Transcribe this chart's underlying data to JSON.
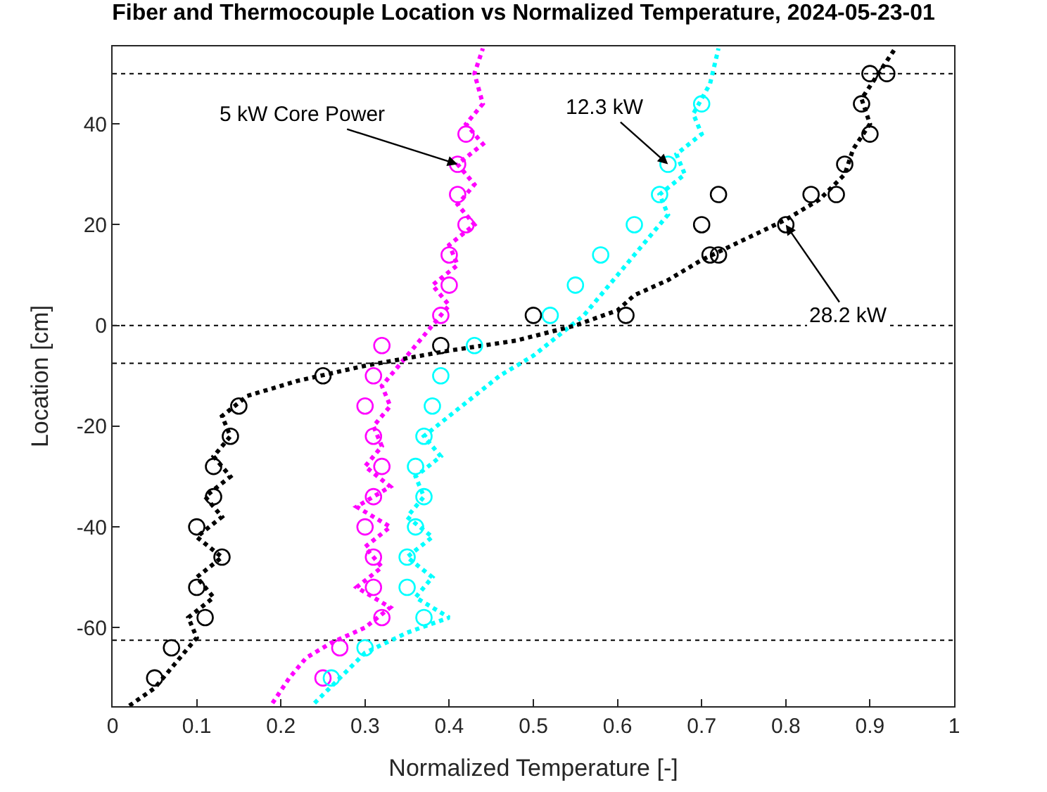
{
  "chart_data": {
    "type": "scatter",
    "title": "Fiber and Thermocouple Location vs Normalized Temperature, 2024-05-23-01",
    "xlabel": "Normalized Temperature [-]",
    "ylabel": "Location [cm]",
    "xlim": [
      0,
      1
    ],
    "xticks": [
      0,
      0.1,
      0.2,
      0.3,
      0.4,
      0.5,
      0.6,
      0.7,
      0.8,
      0.9,
      1
    ],
    "ylim": [
      -75.6,
      55.4
    ],
    "yticks": [
      -60,
      -40,
      -20,
      0,
      20,
      40
    ],
    "grid": false,
    "ref_lines": [
      {
        "axis": "y",
        "value": 50,
        "line_style": "dotted",
        "color": "#000000"
      },
      {
        "axis": "y",
        "value": 0,
        "line_style": "dotted",
        "color": "#000000"
      },
      {
        "axis": "y",
        "value": -7.5,
        "line_style": "dotted",
        "color": "#000000"
      },
      {
        "axis": "y",
        "value": -62.5,
        "line_style": "dotted",
        "color": "#000000"
      }
    ],
    "annotations": [
      {
        "text": "5 kW Core Power",
        "x": 0.41,
        "y": 32
      },
      {
        "text": "12.3 kW",
        "x": 0.66,
        "y": 32
      },
      {
        "text": "28.2 kW",
        "x": 0.8,
        "y": 20
      }
    ],
    "series": [
      {
        "type": "line",
        "line_style": "dotted",
        "marker": "none",
        "color": "#ff00ff",
        "x": [
          0.19,
          0.21,
          0.23,
          0.26,
          0.3,
          0.33,
          0.29,
          0.32,
          0.3,
          0.33,
          0.29,
          0.33,
          0.3,
          0.32,
          0.31,
          0.33,
          0.32,
          0.34,
          0.36,
          0.38,
          0.4,
          0.38,
          0.41,
          0.4,
          0.43,
          0.41,
          0.43,
          0.41,
          0.44,
          0.42,
          0.44,
          0.43,
          0.44
        ],
        "values": [
          -75,
          -70,
          -66,
          -63,
          -60,
          -56,
          -52,
          -48,
          -44,
          -40,
          -36,
          -32,
          -28,
          -24,
          -20,
          -16,
          -12,
          -8,
          -4,
          0,
          4,
          8,
          12,
          16,
          20,
          24,
          28,
          32,
          36,
          40,
          44,
          50,
          55
        ]
      },
      {
        "type": "line",
        "line_style": "dotted",
        "marker": "none",
        "color": "#00ffff",
        "x": [
          0.24,
          0.27,
          0.3,
          0.35,
          0.4,
          0.36,
          0.38,
          0.35,
          0.38,
          0.35,
          0.37,
          0.36,
          0.39,
          0.37,
          0.4,
          0.43,
          0.46,
          0.5,
          0.53,
          0.56,
          0.58,
          0.6,
          0.62,
          0.64,
          0.66,
          0.65,
          0.68,
          0.67,
          0.7,
          0.69,
          0.71,
          0.72
        ],
        "values": [
          -75,
          -70,
          -65,
          -61,
          -58,
          -54,
          -50,
          -46,
          -42,
          -38,
          -34,
          -30,
          -26,
          -22,
          -18,
          -14,
          -10,
          -6,
          -2,
          2,
          6,
          10,
          14,
          18,
          22,
          26,
          30,
          34,
          38,
          42,
          48,
          55
        ]
      },
      {
        "type": "line",
        "line_style": "dotted",
        "marker": "none",
        "color": "#000000",
        "x": [
          0.02,
          0.05,
          0.08,
          0.1,
          0.09,
          0.12,
          0.1,
          0.13,
          0.1,
          0.13,
          0.11,
          0.14,
          0.12,
          0.14,
          0.13,
          0.16,
          0.22,
          0.3,
          0.4,
          0.48,
          0.55,
          0.6,
          0.62,
          0.66,
          0.7,
          0.75,
          0.8,
          0.84,
          0.87,
          0.88,
          0.9,
          0.89,
          0.91,
          0.93
        ],
        "values": [
          -75.5,
          -72,
          -66,
          -62,
          -58,
          -54,
          -50,
          -46,
          -42,
          -38,
          -34,
          -30,
          -26,
          -22,
          -18,
          -14,
          -11,
          -8,
          -5,
          -3,
          0,
          3,
          6,
          9,
          13,
          17,
          21,
          25,
          30,
          35,
          40,
          45,
          50,
          55
        ]
      },
      {
        "marker": "circle",
        "color": "#ff00ff",
        "x": [
          0.42,
          0.41,
          0.41,
          0.42,
          0.4,
          0.4,
          0.39,
          0.32,
          0.31,
          0.3,
          0.31,
          0.32,
          0.31,
          0.3,
          0.31,
          0.31,
          0.32,
          0.27,
          0.25
        ],
        "values": [
          38,
          32,
          26,
          20,
          14,
          8,
          2,
          -4,
          -10,
          -16,
          -22,
          -28,
          -34,
          -40,
          -46,
          -52,
          -58,
          -64,
          -70
        ]
      },
      {
        "marker": "circle",
        "color": "#00ffff",
        "x": [
          0.7,
          0.66,
          0.65,
          0.62,
          0.58,
          0.55,
          0.52,
          0.43,
          0.39,
          0.38,
          0.37,
          0.36,
          0.37,
          0.36,
          0.35,
          0.35,
          0.37,
          0.3,
          0.26
        ],
        "values": [
          44,
          32,
          26,
          20,
          14,
          8,
          2,
          -4,
          -10,
          -16,
          -22,
          -28,
          -34,
          -40,
          -46,
          -52,
          -58,
          -64,
          -70
        ]
      },
      {
        "marker": "circle",
        "color": "#000000",
        "x": [
          0.9,
          0.92,
          0.89,
          0.9,
          0.87,
          0.86,
          0.83,
          0.72,
          0.7,
          0.8,
          0.71,
          0.72,
          0.61,
          0.5,
          0.39,
          0.25,
          0.15,
          0.14,
          0.12,
          0.12,
          0.1,
          0.13,
          0.1,
          0.11,
          0.07,
          0.05
        ],
        "values": [
          50,
          50,
          44,
          38,
          32,
          26,
          26,
          26,
          20,
          20,
          14,
          14,
          2,
          2,
          -4,
          -10,
          -16,
          -22,
          -28,
          -34,
          -40,
          -46,
          -52,
          -58,
          -64,
          -70
        ]
      }
    ]
  }
}
